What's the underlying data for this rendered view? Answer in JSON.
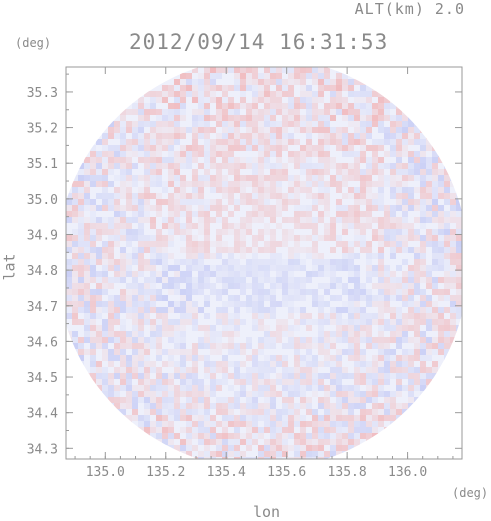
{
  "header": {
    "altitude_label": "ALT(km) 2.0",
    "datetime": "2012/09/14 16:31:53"
  },
  "axes": {
    "x_unit": "(deg)",
    "y_unit": "(deg)",
    "x_title": "lon",
    "y_title": "lat"
  },
  "chart_data": {
    "type": "heatmap",
    "title": "2012/09/14 16:31:53",
    "subtitle": "ALT(km) 2.0",
    "xlabel": "lon",
    "ylabel": "lat",
    "x_unit": "(deg)",
    "y_unit": "(deg)",
    "xlim": [
      134.87,
      136.18
    ],
    "ylim": [
      34.27,
      35.37
    ],
    "x_ticks": [
      135.0,
      135.2,
      135.4,
      135.6,
      135.8,
      136.0
    ],
    "x_tick_labels": [
      "135.0",
      "135.2",
      "135.4",
      "135.6",
      "135.8",
      "136.0"
    ],
    "y_ticks": [
      34.3,
      34.4,
      34.5,
      34.6,
      34.7,
      34.8,
      34.9,
      35.0,
      35.1,
      35.2,
      35.3
    ],
    "y_tick_labels": [
      "34.3",
      "34.4",
      "34.5",
      "34.6",
      "34.7",
      "34.8",
      "34.9",
      "35.0",
      "35.1",
      "35.2",
      "35.3"
    ],
    "radar_center": {
      "lon": 135.52,
      "lat": 34.82
    },
    "colors": {
      "positive": "#f2a0a0",
      "negative": "#a8b0f0",
      "near_zero": "#eef0fb",
      "frame": "#9a9a9a"
    }
  }
}
